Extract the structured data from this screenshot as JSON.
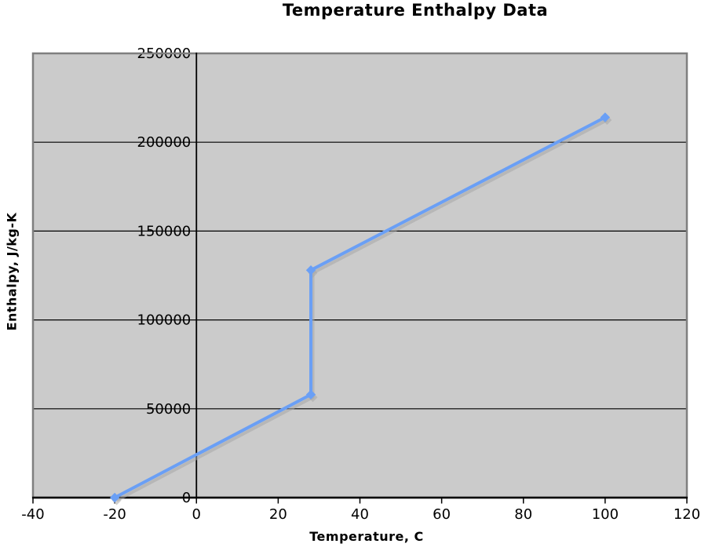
{
  "chart_data": {
    "type": "line",
    "title": "Temperature Enthalpy Data",
    "xlabel": "Temperature, C",
    "ylabel": "Enthalpy, J/kg-K",
    "x": [
      -20,
      28,
      28,
      100
    ],
    "y": [
      0,
      58000,
      128000,
      214000
    ],
    "xlim": [
      -40,
      120
    ],
    "ylim": [
      0,
      250000
    ],
    "x_ticks": [
      -40,
      -20,
      0,
      20,
      40,
      60,
      80,
      100,
      120
    ],
    "x_tick_labels": [
      "-40",
      "-20",
      "0",
      "20",
      "40",
      "60",
      "80",
      "100",
      "120"
    ],
    "y_ticks": [
      0,
      50000,
      100000,
      150000,
      200000,
      250000
    ],
    "y_tick_labels": [
      "0",
      "50000",
      "100000",
      "150000",
      "200000",
      "250000"
    ],
    "grid": "horizontal-major",
    "legend": "none",
    "marker": "diamond",
    "colors": {
      "line": "#6a9ff5",
      "marker": "#6a9ff5",
      "shadow": "#a8a8a8",
      "plot_background": "#cbcbcb",
      "plot_border": "#7f7f7f",
      "gridline": "#000000",
      "axis": "#000000",
      "text": "#000000",
      "page_background": "#ffffff"
    }
  }
}
